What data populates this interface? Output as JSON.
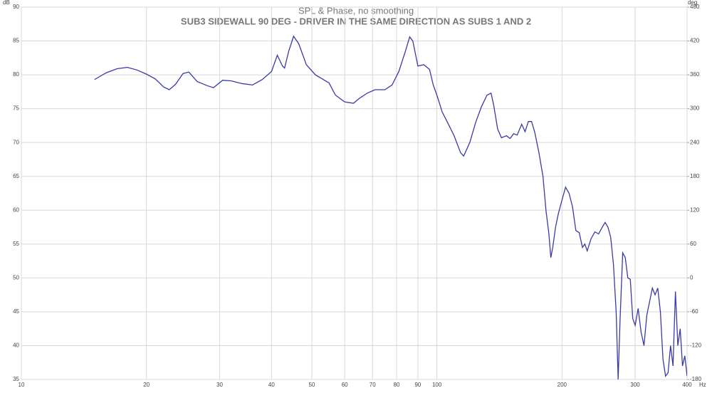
{
  "chart_data": {
    "type": "line",
    "title": "SPL & Phase, no smoothing",
    "subtitle": "SUB3 SIDEWALL 90 DEG - DRIVER IN THE SAME DIRECTION AS SUBS 1 AND 2",
    "y_label": "dB",
    "y2_label": "deg",
    "x_unit": "Hz",
    "xscale": "log",
    "grid": true,
    "xlim": [
      10,
      400
    ],
    "xticks": [
      10,
      20,
      30,
      40,
      50,
      60,
      70,
      80,
      90,
      100,
      200,
      300,
      400
    ],
    "ylim": [
      35,
      90
    ],
    "yticks": [
      35,
      40,
      45,
      50,
      55,
      60,
      65,
      70,
      75,
      80,
      85,
      90
    ],
    "y2lim": [
      -180,
      480
    ],
    "y2ticks": [
      -180,
      -120,
      -60,
      0,
      60,
      120,
      180,
      240,
      300,
      360,
      420,
      480
    ],
    "series": [
      {
        "color": "#3a3aa6",
        "x": [
          15,
          16,
          17,
          18,
          19,
          20,
          21,
          22,
          22.7,
          23.5,
          24.5,
          25.3,
          26.5,
          28,
          29,
          30.5,
          32,
          34,
          36,
          38,
          40,
          41.3,
          42.5,
          43,
          44,
          45.2,
          46.5,
          48.5,
          51,
          55,
          57,
          60,
          63,
          65,
          68,
          71,
          75,
          78,
          81,
          84,
          86,
          87.5,
          90,
          93,
          96,
          98,
          100,
          103,
          107,
          110,
          114,
          116,
          120,
          124,
          128,
          132,
          135,
          137,
          140,
          143,
          147,
          150,
          153,
          156,
          160,
          163,
          166,
          169,
          172,
          176,
          180,
          183,
          186,
          188,
          190,
          193,
          196,
          200,
          204,
          208,
          212,
          216,
          220,
          224,
          227,
          230,
          235,
          240,
          245,
          250,
          254,
          258,
          262,
          266,
          270,
          273,
          276,
          280,
          284,
          288,
          292,
          296,
          300,
          305,
          310,
          315,
          320,
          325,
          330,
          335,
          340,
          345,
          350,
          355,
          360,
          365,
          370,
          375,
          380,
          385,
          390,
          395,
          400
        ],
        "values": [
          79.3,
          80.3,
          80.9,
          81.1,
          80.7,
          80.1,
          79.4,
          78.2,
          77.8,
          78.6,
          80.2,
          80.4,
          79.0,
          78.4,
          78.1,
          79.2,
          79.1,
          78.7,
          78.5,
          79.3,
          80.5,
          82.9,
          81.3,
          81.0,
          83.5,
          85.7,
          84.6,
          81.5,
          80.0,
          78.8,
          77.0,
          76.0,
          75.8,
          76.5,
          77.3,
          77.8,
          77.8,
          78.5,
          80.5,
          83.5,
          85.6,
          85.0,
          81.3,
          81.5,
          80.8,
          78.5,
          77.0,
          74.5,
          72.5,
          71.0,
          68.5,
          68.0,
          70.0,
          73.0,
          75.3,
          77.0,
          77.3,
          75.5,
          72.0,
          70.7,
          71.0,
          70.6,
          71.3,
          71.1,
          72.7,
          71.6,
          73.1,
          73.1,
          71.5,
          68.5,
          65.0,
          60.0,
          56.5,
          53.0,
          54.5,
          57.5,
          59.5,
          61.5,
          63.4,
          62.5,
          60.5,
          57.0,
          56.7,
          54.5,
          55.0,
          54.0,
          55.8,
          56.8,
          56.5,
          57.5,
          58.2,
          57.5,
          56.0,
          52.0,
          45.0,
          35.0,
          44.0,
          53.7,
          53.0,
          50.0,
          49.8,
          44.0,
          43.0,
          45.5,
          42.0,
          40.0,
          44.5,
          46.5,
          48.5,
          47.5,
          48.5,
          45.0,
          38.0,
          35.5,
          36.0,
          40.0,
          37.0,
          48.0,
          40.0,
          42.5,
          37.0,
          38.5,
          35.5
        ]
      }
    ]
  }
}
